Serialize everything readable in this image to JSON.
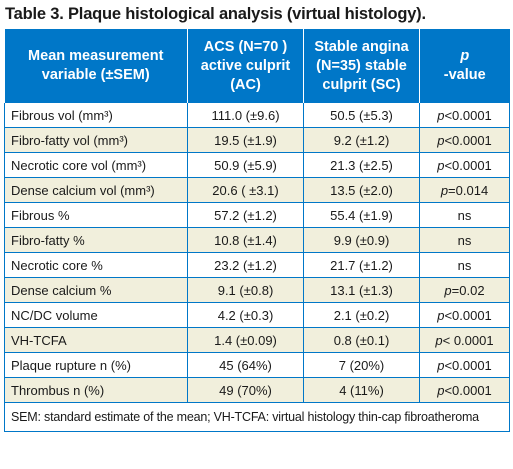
{
  "title": "Table 3. Plaque histological analysis (virtual histology).",
  "header": {
    "col1": [
      "Mean measurement",
      "variable (±SEM)"
    ],
    "col2": [
      "ACS (N=70 )",
      "active culprit",
      "(AC)"
    ],
    "col3": [
      "Stable angina",
      "(N=35) stable",
      "culprit (SC)"
    ],
    "col4": "p-value"
  },
  "rows": [
    {
      "label": "Fibrous vol (mm³)",
      "ac": "111.0 (±9.6)",
      "sc": "50.5 (±5.3)",
      "p": "p<0.0001"
    },
    {
      "label": "Fibro-fatty vol (mm³)",
      "ac": "19.5 (±1.9)",
      "sc": "9.2 (±1.2)",
      "p": "p<0.0001"
    },
    {
      "label": "Necrotic core vol (mm³)",
      "ac": "50.9 (±5.9)",
      "sc": "21.3 (±2.5)",
      "p": "p<0.0001"
    },
    {
      "label": "Dense calcium vol (mm³)",
      "ac": "20.6 ( ±3.1)",
      "sc": "13.5 (±2.0)",
      "p": "p=0.014"
    },
    {
      "label": "Fibrous %",
      "ac": "57.2 (±1.2)",
      "sc": "55.4 (±1.9)",
      "p": "ns"
    },
    {
      "label": "Fibro-fatty %",
      "ac": "10.8 (±1.4)",
      "sc": "9.9 (±0.9)",
      "p": "ns"
    },
    {
      "label": "Necrotic core %",
      "ac": "23.2 (±1.2)",
      "sc": "21.7 (±1.2)",
      "p": "ns"
    },
    {
      "label": "Dense calcium %",
      "ac": "9.1 (±0.8)",
      "sc": "13.1 (±1.3)",
      "p": "p=0.02"
    },
    {
      "label": "NC/DC volume",
      "ac": "4.2 (±0.3)",
      "sc": "2.1 (±0.2)",
      "p": "p<0.0001"
    },
    {
      "label": "VH-TCFA",
      "ac": "1.4 (±0.09)",
      "sc": "0.8 (±0.1)",
      "p": "p< 0.0001"
    },
    {
      "label": "Plaque rupture n (%)",
      "ac": "45 (64%)",
      "sc": "7 (20%)",
      "p": "p<0.0001"
    },
    {
      "label": "Thrombus n (%)",
      "ac": "49 (70%)",
      "sc": "4 (11%)",
      "p": "p<0.0001"
    }
  ],
  "footnote": "SEM: standard estimate of the mean; VH-TCFA: virtual histology thin-cap fibroatheroma",
  "colors": {
    "header_bg": "#0077c8",
    "alt_row_bg": "#f1efdc",
    "rule": "#0077c8"
  }
}
